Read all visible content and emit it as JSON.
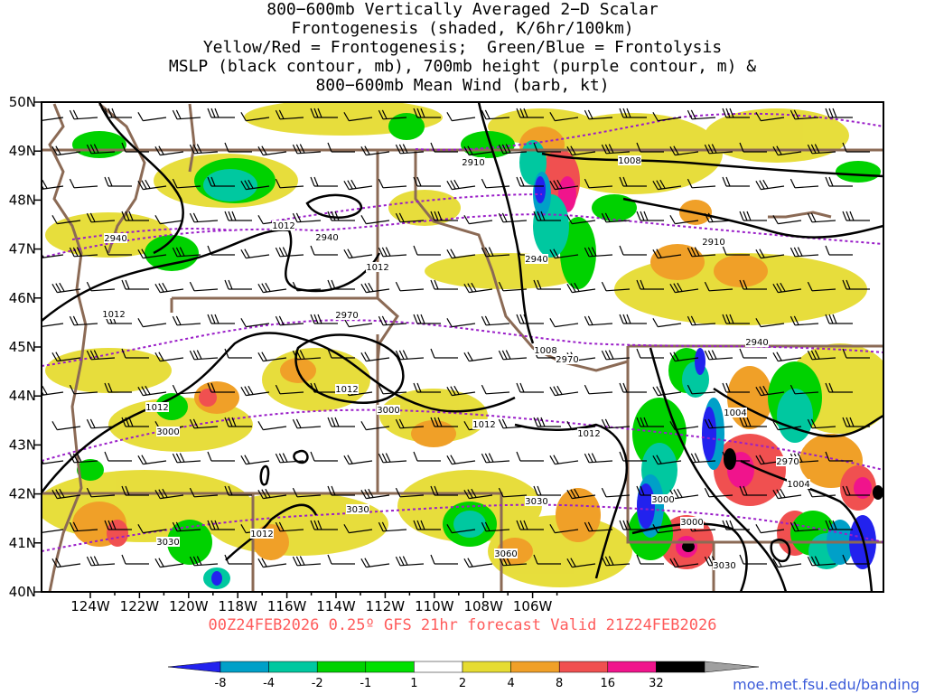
{
  "title_lines": [
    "800−600mb Vertically Averaged 2−D Scalar",
    "Frontogenesis (shaded, K/6hr/100km)",
    "Yellow/Red = Frontogenesis;  Green/Blue = Frontolysis",
    "MSLP (black contour, mb), 700mb height (purple contour, m) &",
    "800−600mb Mean Wind (barb, kt)"
  ],
  "lat_labels": [
    "50N",
    "49N",
    "48N",
    "47N",
    "46N",
    "45N",
    "44N",
    "43N",
    "42N",
    "41N",
    "40N"
  ],
  "lon_labels": [
    "124W",
    "122W",
    "120W",
    "118W",
    "116W",
    "114W",
    "112W",
    "110W",
    "108W",
    "106W"
  ],
  "valid_text": "00Z24FEB2026 0.25º GFS 21hr forecast Valid 21Z24FEB2026",
  "credit": "moe.met.fsu.edu/banding",
  "colorbar": {
    "labels": [
      "-8",
      "-4",
      "-2",
      "-1",
      "1",
      "2",
      "4",
      "8",
      "16",
      "32"
    ],
    "colors": [
      "#2222ee",
      "#00a0c8",
      "#00c8a0",
      "#00d200",
      "#00e000",
      "#ffffff",
      "#e6dc32",
      "#f0a028",
      "#f05050",
      "#f0148c",
      "#000000",
      "#a0a0a0"
    ]
  },
  "msl_labels": [
    "1008",
    "1012",
    "1012",
    "1012",
    "1012",
    "1008",
    "1012",
    "1012",
    "1012",
    "1004",
    "1004",
    "1008",
    "1012"
  ],
  "hgt_labels": [
    "2910",
    "2940",
    "2940",
    "2940",
    "2910",
    "2970",
    "2970",
    "2940",
    "3000",
    "3000",
    "3000",
    "2970",
    "3030",
    "3030",
    "3030",
    "3060",
    "3030",
    "3000"
  ]
}
